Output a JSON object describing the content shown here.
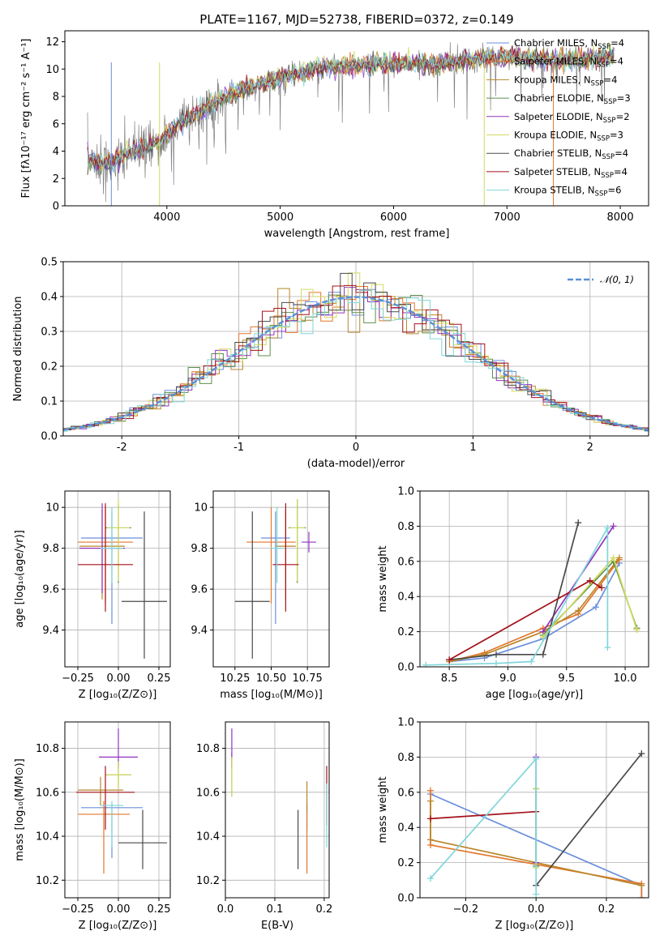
{
  "colors": [
    "#6a8fdc",
    "#e2762c",
    "#b9862a",
    "#5e8f4d",
    "#9333c0",
    "#d3db60",
    "#4a4a4a",
    "#a5111a",
    "#7fd6da"
  ],
  "chart_data": [
    {
      "id": "spectrum",
      "type": "line",
      "title": "PLATE=1167, MJD=52738, FIBERID=0372, z=0.149",
      "xlabel": "wavelength [Angstrom, rest frame]",
      "ylabel": "Flux [fλ10⁻¹⁷ erg cm⁻² s⁻¹ A⁻¹]",
      "xlim": [
        3100,
        8250
      ],
      "ylim": [
        0,
        12.8
      ],
      "xticks": [
        4000,
        5000,
        6000,
        7000,
        8000
      ],
      "yticks": [
        0,
        2,
        4,
        6,
        8,
        10,
        12
      ],
      "grid": false,
      "legend_position": "top-right",
      "legend": [
        "Chabrier MILES, N$_{SSP}$=4",
        "Salpeter MILES, N$_{SSP}$=4",
        "Kroupa MILES, N$_{SSP}$=4",
        "Chabrier ELODIE, N$_{SSP}$=3",
        "Salpeter ELODIE, N$_{SSP}$=2",
        "Kroupa ELODIE, N$_{SSP}$=3",
        "Chabrier STELIB, N$_{SSP}$=4",
        "Salpeter STELIB, N$_{SSP}$=4",
        "Kroupa STELIB, N$_{SSP}$=6"
      ],
      "continuum": [
        [
          3300,
          3.4
        ],
        [
          3500,
          3.1
        ],
        [
          3650,
          3.8
        ],
        [
          3800,
          4.3
        ],
        [
          3950,
          4.8
        ],
        [
          4100,
          6.0
        ],
        [
          4300,
          6.9
        ],
        [
          4500,
          7.9
        ],
        [
          4700,
          8.6
        ],
        [
          4900,
          9.1
        ],
        [
          5100,
          9.6
        ],
        [
          5400,
          10.1
        ],
        [
          5700,
          10.3
        ],
        [
          6000,
          10.4
        ],
        [
          6300,
          10.4
        ],
        [
          6600,
          10.6
        ],
        [
          6900,
          10.9
        ],
        [
          7200,
          10.8
        ],
        [
          7500,
          10.6
        ],
        [
          7800,
          10.8
        ],
        [
          7950,
          11.0
        ]
      ]
    },
    {
      "id": "residuals",
      "type": "histogram",
      "xlabel": "(data-model)/error",
      "ylabel": "Normed distribution",
      "xlim": [
        -2.5,
        2.5
      ],
      "ylim": [
        0,
        0.5
      ],
      "xticks": [
        -2,
        -1,
        0,
        1,
        2
      ],
      "yticks": [
        0.0,
        0.1,
        0.2,
        0.3,
        0.4,
        0.5
      ],
      "grid": true,
      "bin_width": 0.1,
      "reference": "N(0,1)",
      "legend_position": "top-right",
      "reference_label": "𝒩(0, 1)"
    },
    {
      "id": "age_vs_Z",
      "type": "scatter",
      "xlabel": "Z [log₁₀(Z/Z⊙)]",
      "ylabel": "age  [log₁₀(age/yr)]",
      "xlim": [
        -0.33,
        0.32
      ],
      "ylim": [
        9.22,
        10.08
      ],
      "xticks": [
        -0.25,
        0.0,
        0.25
      ],
      "xticklabels": [
        "−0.25",
        "0.00",
        "0.25"
      ],
      "yticks": [
        9.4,
        9.6,
        9.8,
        10.0
      ],
      "grid": true,
      "points": [
        {
          "x": -0.04,
          "y": 9.85,
          "xerr": [
            0.19,
            0.19
          ],
          "yerr": [
            0.42,
            0.13
          ]
        },
        {
          "x": -0.08,
          "y": 9.83,
          "xerr": [
            0.17,
            0.17
          ],
          "yerr": [
            0.3,
            0.17
          ]
        },
        {
          "x": -0.1,
          "y": 9.81,
          "xerr": [
            0.14,
            0.14
          ],
          "yerr": [
            0.26,
            0.18
          ]
        },
        {
          "x": 0.0,
          "y": 9.9,
          "xerr": [
            0.08,
            0.08
          ],
          "yerr": [
            0.27,
            0.12
          ]
        },
        {
          "x": -0.1,
          "y": 9.8,
          "xerr": [
            0.14,
            0.14
          ],
          "yerr": [
            0.22,
            0.22
          ]
        },
        {
          "x": 0.0,
          "y": 9.9,
          "xerr": [
            0.07,
            0.07
          ],
          "yerr": [
            0.26,
            0.14
          ]
        },
        {
          "x": 0.16,
          "y": 9.54,
          "xerr": [
            0.14,
            0.14
          ],
          "yerr": [
            0.28,
            0.44
          ]
        },
        {
          "x": -0.08,
          "y": 9.72,
          "xerr": [
            0.17,
            0.17
          ],
          "yerr": [
            0.23,
            0.3
          ]
        },
        {
          "x": -0.04,
          "y": 9.8,
          "xerr": [
            0.07,
            0.07
          ],
          "yerr": [
            0.17,
            0.2
          ]
        }
      ]
    },
    {
      "id": "age_vs_mass",
      "type": "scatter",
      "xlabel": "mass [log₁₀(M/M⊙)]",
      "xlim": [
        10.1,
        10.9
      ],
      "ylim": [
        9.22,
        10.08
      ],
      "xticks": [
        10.25,
        10.5,
        10.75
      ],
      "xticklabels": [
        "10.25",
        "10.50",
        "10.75"
      ],
      "yticks": [
        9.4,
        9.6,
        9.8,
        10.0
      ],
      "grid": true,
      "points": [
        {
          "x": 10.53,
          "y": 9.85,
          "xerr": [
            0.1,
            0.1
          ],
          "yerr": [
            0.42,
            0.13
          ]
        },
        {
          "x": 10.5,
          "y": 9.83,
          "xerr": [
            0.17,
            0.17
          ],
          "yerr": [
            0.3,
            0.17
          ]
        },
        {
          "x": 10.6,
          "y": 9.81,
          "xerr": [
            0.07,
            0.07
          ],
          "yerr": [
            0.26,
            0.18
          ]
        },
        {
          "x": 10.68,
          "y": 9.9,
          "xerr": [
            0.06,
            0.06
          ],
          "yerr": [
            0.27,
            0.14
          ]
        },
        {
          "x": 10.76,
          "y": 9.83,
          "xerr": [
            0.05,
            0.05
          ],
          "yerr": [
            0.05,
            0.05
          ]
        },
        {
          "x": 10.68,
          "y": 9.9,
          "xerr": [
            0.05,
            0.05
          ],
          "yerr": [
            0.26,
            0.14
          ]
        },
        {
          "x": 10.37,
          "y": 9.54,
          "xerr": [
            0.12,
            0.12
          ],
          "yerr": [
            0.28,
            0.44
          ]
        },
        {
          "x": 10.6,
          "y": 9.72,
          "xerr": [
            0.09,
            0.09
          ],
          "yerr": [
            0.23,
            0.3
          ]
        },
        {
          "x": 10.54,
          "y": 9.8,
          "xerr": [
            0.05,
            0.05
          ],
          "yerr": [
            0.17,
            0.2
          ]
        }
      ]
    },
    {
      "id": "weight_vs_age",
      "type": "line",
      "xlabel": "age  [log₁₀(age/yr)]",
      "ylabel": "mass weight",
      "xlim": [
        8.25,
        10.2
      ],
      "ylim": [
        0,
        1.0
      ],
      "xticks": [
        8.5,
        9.0,
        9.5,
        10.0
      ],
      "xticklabels": [
        "8.5",
        "9.0",
        "9.5",
        "10.0"
      ],
      "yticks": [
        0.0,
        0.2,
        0.4,
        0.6,
        0.8,
        1.0
      ],
      "grid": true,
      "series": [
        {
          "x": [
            8.5,
            8.8,
            9.3,
            9.75,
            9.95
          ],
          "y": [
            0.03,
            0.05,
            0.16,
            0.34,
            0.59
          ]
        },
        {
          "x": [
            8.5,
            8.8,
            9.3,
            9.6,
            9.95
          ],
          "y": [
            0.03,
            0.08,
            0.22,
            0.3,
            0.61
          ]
        },
        {
          "x": [
            8.5,
            8.8,
            9.3,
            9.6,
            9.95
          ],
          "y": [
            0.03,
            0.07,
            0.2,
            0.32,
            0.62
          ]
        },
        {
          "x": [
            9.3,
            9.9,
            10.1
          ],
          "y": [
            0.18,
            0.6,
            0.22
          ]
        },
        {
          "x": [
            9.3,
            9.9
          ],
          "y": [
            0.2,
            0.8
          ]
        },
        {
          "x": [
            9.3,
            9.9,
            10.1
          ],
          "y": [
            0.17,
            0.62,
            0.21
          ]
        },
        {
          "x": [
            8.5,
            8.9,
            9.3,
            9.6
          ],
          "y": [
            0.04,
            0.07,
            0.07,
            0.82
          ]
        },
        {
          "x": [
            8.5,
            9.7,
            9.8
          ],
          "y": [
            0.04,
            0.49,
            0.45
          ]
        },
        {
          "x": [
            8.3,
            8.9,
            9.2,
            9.85,
            9.85
          ],
          "y": [
            0.01,
            0.02,
            0.03,
            0.79,
            0.11
          ]
        }
      ]
    },
    {
      "id": "mass_vs_Z",
      "type": "scatter",
      "xlabel": "Z [log₁₀(Z/Z⊙)]",
      "ylabel": "mass [log₁₀(M/M⊙)]",
      "xlim": [
        -0.33,
        0.32
      ],
      "ylim": [
        10.12,
        10.92
      ],
      "xticks": [
        -0.25,
        0.0,
        0.25
      ],
      "xticklabels": [
        "−0.25",
        "0.00",
        "0.25"
      ],
      "yticks": [
        10.2,
        10.4,
        10.6,
        10.8
      ],
      "grid": true,
      "points": [
        {
          "x": -0.04,
          "y": 10.53,
          "xerr": [
            0.19,
            0.19
          ],
          "yerr": [
            0.23,
            0.02
          ]
        },
        {
          "x": -0.09,
          "y": 10.5,
          "xerr": [
            0.16,
            0.16
          ],
          "yerr": [
            0.27,
            0.06
          ]
        },
        {
          "x": -0.11,
          "y": 10.61,
          "xerr": [
            0.14,
            0.14
          ],
          "yerr": [
            0.07,
            0.06
          ]
        },
        {
          "x": 0.0,
          "y": 10.68,
          "xerr": [
            0.08,
            0.08
          ],
          "yerr": [
            0.06,
            0.06
          ]
        },
        {
          "x": 0.0,
          "y": 10.76,
          "xerr": [
            0.12,
            0.12
          ],
          "yerr": [
            0.05,
            0.13
          ]
        },
        {
          "x": 0.0,
          "y": 10.68,
          "xerr": [
            0.08,
            0.08
          ],
          "yerr": [
            0.06,
            0.06
          ]
        },
        {
          "x": 0.15,
          "y": 10.37,
          "xerr": [
            0.15,
            0.15
          ],
          "yerr": [
            0.12,
            0.15
          ]
        },
        {
          "x": -0.08,
          "y": 10.6,
          "xerr": [
            0.18,
            0.18
          ],
          "yerr": [
            0.17,
            0.12
          ]
        },
        {
          "x": -0.04,
          "y": 10.54,
          "xerr": [
            0.07,
            0.07
          ],
          "yerr": [
            0.19,
            0.02
          ]
        }
      ]
    },
    {
      "id": "mass_vs_ebv",
      "type": "scatter",
      "xlabel": "E(B-V)",
      "xlim": [
        0.0,
        0.21
      ],
      "ylim": [
        10.12,
        10.92
      ],
      "xticks": [
        0.0,
        0.1,
        0.2
      ],
      "xticklabels": [
        "0.0",
        "0.1",
        "0.2"
      ],
      "yticks": [
        10.2,
        10.4,
        10.6,
        10.8
      ],
      "grid": true,
      "points": [
        {
          "x": 0.165,
          "y": 10.53,
          "xerr": [
            0,
            0
          ],
          "yerr": [
            0.1,
            0.02
          ]
        },
        {
          "x": 0.165,
          "y": 10.5,
          "xerr": [
            0,
            0
          ],
          "yerr": [
            0.27,
            0.06
          ]
        },
        {
          "x": 0.165,
          "y": 10.61,
          "xerr": [
            0,
            0
          ],
          "yerr": [
            0.1,
            0.04
          ]
        },
        {
          "x": 0.013,
          "y": 10.68,
          "xerr": [
            0,
            0
          ],
          "yerr": [
            0.1,
            0.1
          ]
        },
        {
          "x": 0.013,
          "y": 10.76,
          "xerr": [
            0,
            0
          ],
          "yerr": [
            0.05,
            0.13
          ]
        },
        {
          "x": 0.013,
          "y": 10.68,
          "xerr": [
            0,
            0
          ],
          "yerr": [
            0.1,
            0.08
          ]
        },
        {
          "x": 0.147,
          "y": 10.37,
          "xerr": [
            0,
            0
          ],
          "yerr": [
            0.12,
            0.15
          ]
        },
        {
          "x": 0.205,
          "y": 10.6,
          "xerr": [
            0,
            0
          ],
          "yerr": [
            0.15,
            0.12
          ]
        },
        {
          "x": 0.205,
          "y": 10.54,
          "xerr": [
            0,
            0
          ],
          "yerr": [
            0.19,
            0.1
          ]
        }
      ]
    },
    {
      "id": "weight_vs_Z",
      "type": "line",
      "xlabel": "Z [log₁₀(Z/Z⊙)]",
      "ylabel": "mass weight",
      "xlim": [
        -0.33,
        0.32
      ],
      "ylim": [
        0,
        1.0
      ],
      "xticks": [
        -0.2,
        0.0,
        0.2
      ],
      "xticklabels": [
        "−0.2",
        "0.0",
        "0.2"
      ],
      "yticks": [
        0.0,
        0.2,
        0.4,
        0.6,
        0.8,
        1.0
      ],
      "grid": true,
      "series": [
        {
          "x": [
            -0.3,
            0.3,
            0.3
          ],
          "y": [
            0.59,
            0.07,
            0.0
          ]
        },
        {
          "x": [
            -0.3,
            -0.3,
            0.3,
            0.3
          ],
          "y": [
            0.61,
            0.3,
            0.08,
            0.0
          ]
        },
        {
          "x": [
            -0.3,
            -0.3,
            0.3
          ],
          "y": [
            0.55,
            0.33,
            0.07
          ]
        },
        {
          "x": [
            0.0,
            0.0
          ],
          "y": [
            0.62,
            0.18
          ]
        },
        {
          "x": [
            0.0,
            0.0
          ],
          "y": [
            0.8,
            0.2
          ]
        },
        {
          "x": [
            0.0,
            0.0
          ],
          "y": [
            0.62,
            0.17
          ]
        },
        {
          "x": [
            0.0,
            0.3
          ],
          "y": [
            0.07,
            0.82
          ]
        },
        {
          "x": [
            -0.3,
            0.0
          ],
          "y": [
            0.45,
            0.49
          ]
        },
        {
          "x": [
            -0.3,
            0.0,
            0.0
          ],
          "y": [
            0.11,
            0.79,
            0.02
          ]
        }
      ]
    }
  ]
}
